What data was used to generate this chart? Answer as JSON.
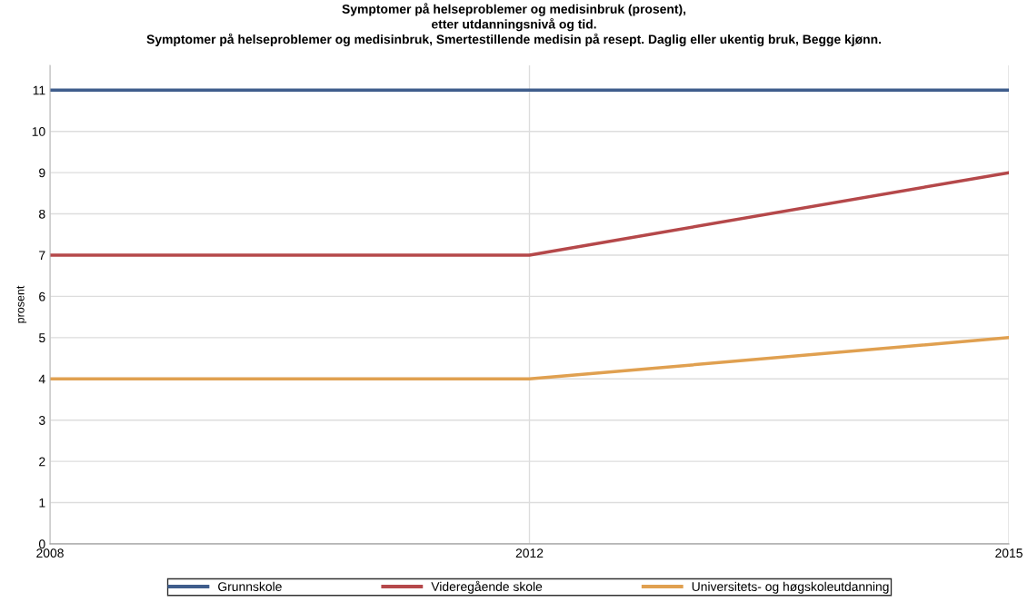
{
  "chart_data": {
    "type": "line",
    "title": "Symptomer på helseproblemer og medisinbruk (prosent),\netter utdanningsnivå og tid.\nSymptomer på helseproblemer og medisinbruk, Smertestillende medisin på resept. Daglig eller ukentig bruk, Begge kjønn.",
    "ylabel": "prosent",
    "categories": [
      "2008",
      "2012",
      "2015"
    ],
    "series": [
      {
        "name": "Grunnskole",
        "color": "#3f5d8c",
        "values": [
          11,
          11,
          11
        ]
      },
      {
        "name": "Videregående skole",
        "color": "#b5484a",
        "values": [
          7,
          7,
          9
        ]
      },
      {
        "name": "Universitets- og høgskoleutdanning",
        "color": "#e0a050",
        "values": [
          4,
          4,
          5
        ]
      }
    ],
    "ylim": [
      0,
      11.6
    ],
    "yticks": [
      0,
      1,
      2,
      3,
      4,
      5,
      6,
      7,
      8,
      9,
      10,
      11
    ],
    "grid": true,
    "legend": "bottom",
    "marker": "none",
    "line_style": "solid"
  }
}
